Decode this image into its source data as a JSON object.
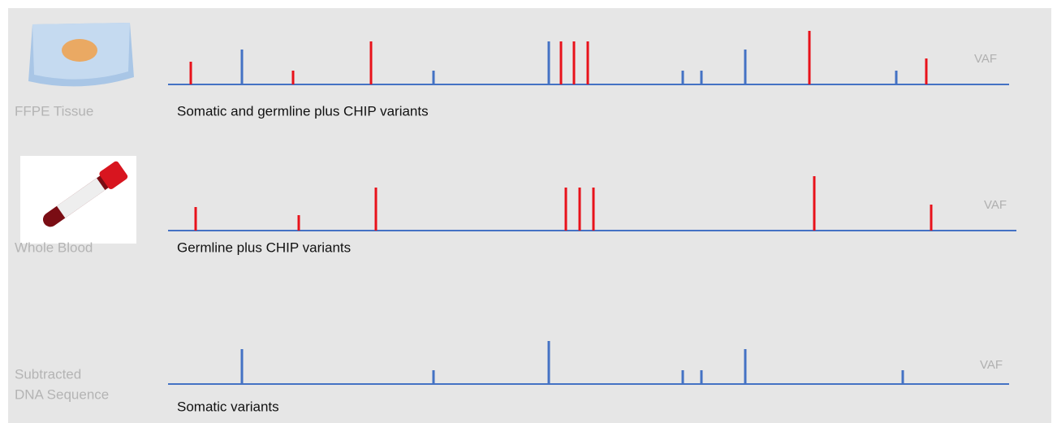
{
  "panels": [
    {
      "sample": "FFPE Tissue",
      "caption": "Somatic and germline plus CHIP variants",
      "axis_label": "VAF"
    },
    {
      "sample": "Whole Blood",
      "caption": "Germline plus CHIP variants",
      "axis_label": "VAF"
    },
    {
      "sample_lines": [
        "Subtracted",
        "DNA Sequence"
      ],
      "caption": "Somatic variants",
      "axis_label": "VAF"
    }
  ]
}
